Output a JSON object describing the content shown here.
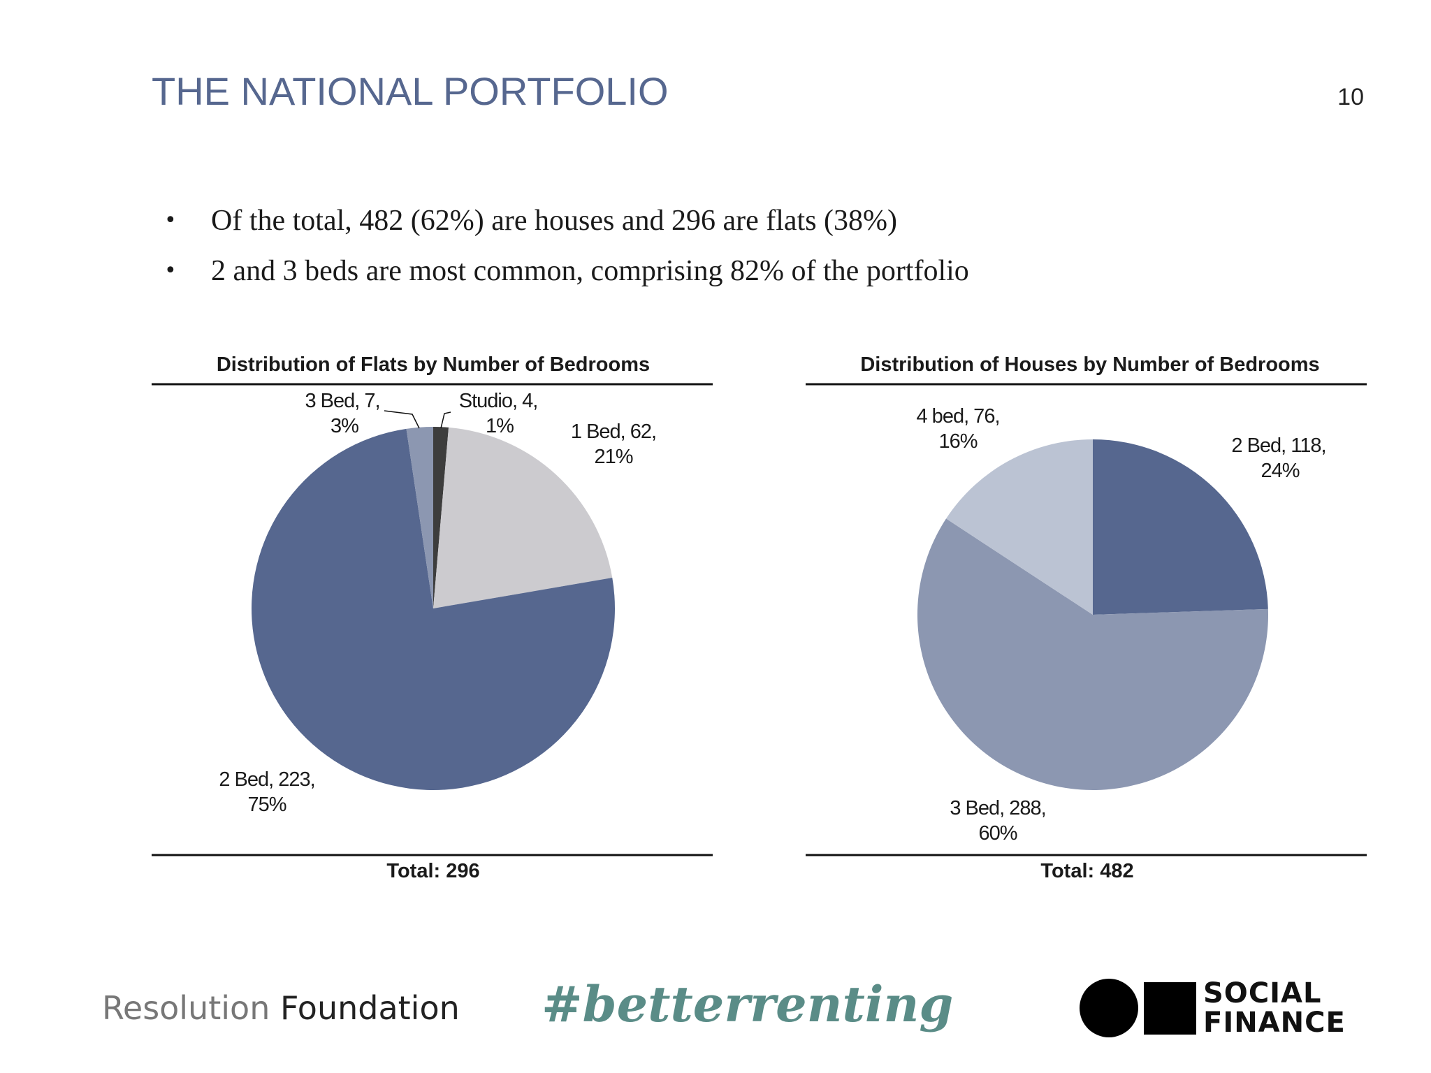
{
  "header": {
    "title": "THE NATIONAL PORTFOLIO",
    "page_number": "10"
  },
  "bullets": [
    "Of the total, 482 (62%) are houses and 296 are flats (38%)",
    "2 and 3 beds are most common, comprising 82% of the portfolio"
  ],
  "chart_data": [
    {
      "type": "pie",
      "title": "Distribution of Flats by Number of Bedrooms",
      "total_label": "Total: 296",
      "slices": [
        {
          "label": "Studio",
          "value": 4,
          "percent": "1%",
          "text_line1": "Studio, 4,",
          "text_line2": "1%",
          "color": "#3d3d3d"
        },
        {
          "label": "1 Bed",
          "value": 62,
          "percent": "21%",
          "text_line1": "1 Bed, 62,",
          "text_line2": "21%",
          "color": "#cccbcf"
        },
        {
          "label": "2 Bed",
          "value": 223,
          "percent": "75%",
          "text_line1": "2 Bed, 223,",
          "text_line2": "75%",
          "color": "#56678f"
        },
        {
          "label": "3 Bed",
          "value": 7,
          "percent": "3%",
          "text_line1": "3 Bed, 7,",
          "text_line2": "3%",
          "color": "#8c97b1"
        }
      ]
    },
    {
      "type": "pie",
      "title": "Distribution of Houses by Number of  Bedrooms",
      "total_label": "Total:  482",
      "slices": [
        {
          "label": "2 Bed",
          "value": 118,
          "percent": "24%",
          "text_line1": "2 Bed, 118,",
          "text_line2": "24%",
          "color": "#56678f"
        },
        {
          "label": "3 Bed",
          "value": 288,
          "percent": "60%",
          "text_line1": "3 Bed, 288,",
          "text_line2": "60%",
          "color": "#8c97b1"
        },
        {
          "label": "4 bed",
          "value": 76,
          "percent": "16%",
          "text_line1": "4 bed, 76,",
          "text_line2": "16%",
          "color": "#bbc3d3"
        }
      ]
    }
  ],
  "footer": {
    "org_left_part1": "Resolution",
    "org_left_part2": "Foundation",
    "hashtag": "#betterrenting",
    "logo_line1": "SOCIAL",
    "logo_line2": "FINANCE"
  }
}
